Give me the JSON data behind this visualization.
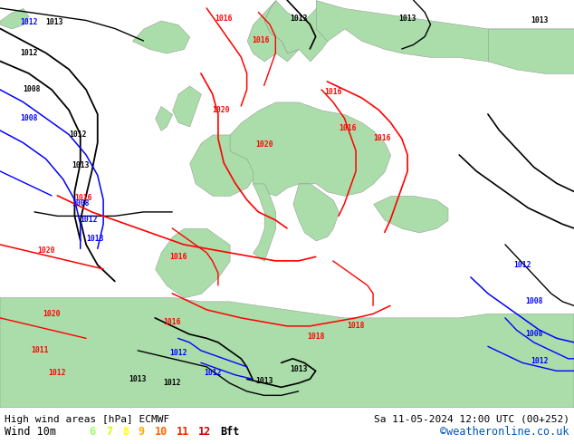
{
  "title_left": "High wind areas [hPa] ECMWF",
  "title_right": "Sa 11-05-2024 12:00 UTC (00+252)",
  "subtitle_left": "Wind 10m",
  "subtitle_right": "©weatheronline.co.uk",
  "bft_values": [
    "6",
    "7",
    "8",
    "9",
    "10",
    "11",
    "12",
    "Bft"
  ],
  "bft_colors": [
    "#99ff66",
    "#ccff00",
    "#ffff00",
    "#ffaa00",
    "#ff6600",
    "#ff2200",
    "#cc0000",
    "#000000"
  ],
  "figsize": [
    6.34,
    4.9
  ],
  "dpi": 100,
  "ocean_color": "#d8d8e8",
  "land_color": "#aaddaa",
  "bottom_bar_color": "#ffffff",
  "font_size_title": 8.0,
  "font_size_bft": 8.5,
  "black_label_color": "#000000",
  "blue_label_color": "#0000cc",
  "red_label_color": "#cc0000"
}
